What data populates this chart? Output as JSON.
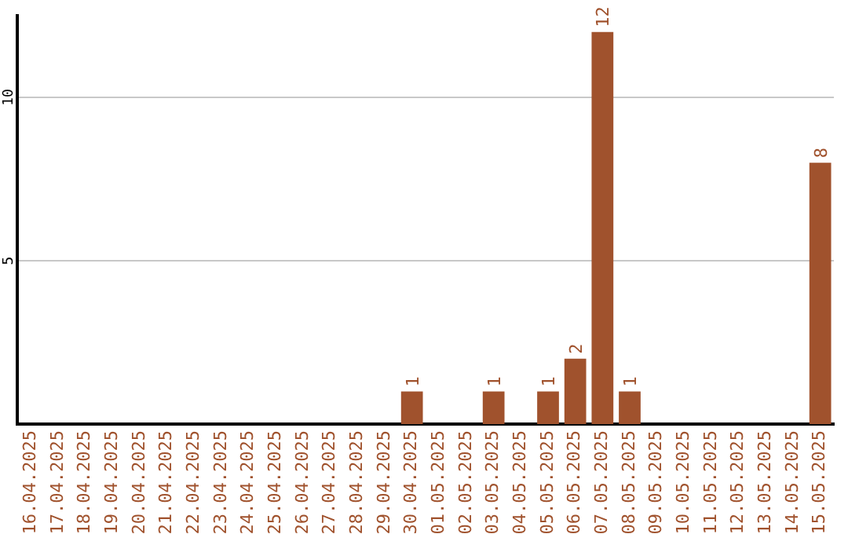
{
  "chart_data": {
    "type": "bar",
    "categories": [
      "16.04.2025",
      "17.04.2025",
      "18.04.2025",
      "19.04.2025",
      "20.04.2025",
      "21.04.2025",
      "22.04.2025",
      "23.04.2025",
      "24.04.2025",
      "25.04.2025",
      "26.04.2025",
      "27.04.2025",
      "28.04.2025",
      "29.04.2025",
      "30.04.2025",
      "01.05.2025",
      "02.05.2025",
      "03.05.2025",
      "04.05.2025",
      "05.05.2025",
      "06.05.2025",
      "07.05.2025",
      "08.05.2025",
      "09.05.2025",
      "10.05.2025",
      "11.05.2025",
      "12.05.2025",
      "13.05.2025",
      "14.05.2025",
      "15.05.2025"
    ],
    "values": [
      0,
      0,
      0,
      0,
      0,
      0,
      0,
      0,
      0,
      0,
      0,
      0,
      0,
      0,
      1,
      0,
      0,
      1,
      0,
      1,
      2,
      12,
      1,
      0,
      0,
      0,
      0,
      0,
      0,
      8
    ],
    "value_labels": [
      null,
      null,
      null,
      null,
      null,
      null,
      null,
      null,
      null,
      null,
      null,
      null,
      null,
      null,
      "1",
      null,
      null,
      "1",
      null,
      "1",
      "2",
      "12",
      "1",
      null,
      null,
      null,
      null,
      null,
      null,
      "8"
    ],
    "color": "#a0522d",
    "ylim": [
      0,
      12.5
    ],
    "yticks": [
      5,
      10
    ],
    "grid": "y"
  }
}
